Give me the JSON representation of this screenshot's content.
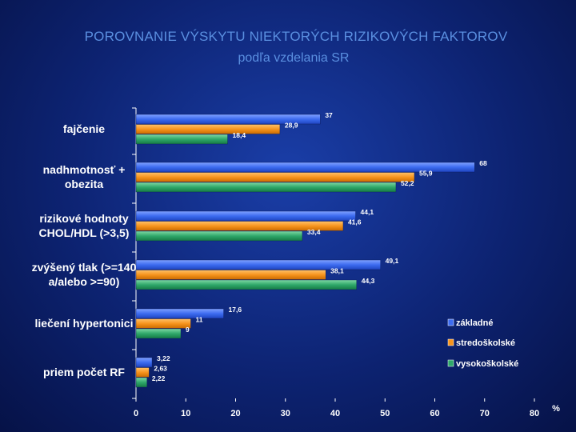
{
  "chart_data": {
    "type": "bar",
    "orientation": "horizontal",
    "title": "POROVNANIE VÝSKYTU NIEKTORÝCH RIZIKOVÝCH FAKTOROV",
    "subtitle": "podľa vzdelania SR",
    "xlabel": "%",
    "xlim": [
      0,
      80
    ],
    "xticks": [
      0,
      10,
      20,
      30,
      40,
      50,
      60,
      70,
      80
    ],
    "categories": [
      [
        "fajčenie"
      ],
      [
        "nadhmotnosť +",
        "obezita"
      ],
      [
        "rizikové hodnoty",
        "CHOL/HDL (>3,5)"
      ],
      [
        "zvýšený tlak (>=140",
        "a/alebo >=90)"
      ],
      [
        "liečení hypertonici"
      ],
      [
        "priem počet RF"
      ]
    ],
    "series": [
      {
        "name": "základné",
        "color": "#3d6cf0",
        "values": [
          37,
          68,
          44.1,
          49.1,
          17.6,
          3.22
        ],
        "labels": [
          "37",
          "68",
          "44,1",
          "49,1",
          "17,6",
          "3,22"
        ]
      },
      {
        "name": "stredoškolské",
        "color": "#f7941d",
        "values": [
          28.9,
          55.9,
          41.6,
          38.1,
          11,
          2.63
        ],
        "labels": [
          "28,9",
          "55,9",
          "41,6",
          "38,1",
          "11",
          "2,63"
        ]
      },
      {
        "name": "vysokoškolské",
        "color": "#2fa86a",
        "values": [
          18.4,
          52.2,
          33.4,
          44.3,
          9,
          2.22
        ],
        "labels": [
          "18,4",
          "52,2",
          "33,4",
          "44,3",
          "9",
          "2,22"
        ]
      }
    ],
    "legend_position": "right",
    "grid": false
  }
}
